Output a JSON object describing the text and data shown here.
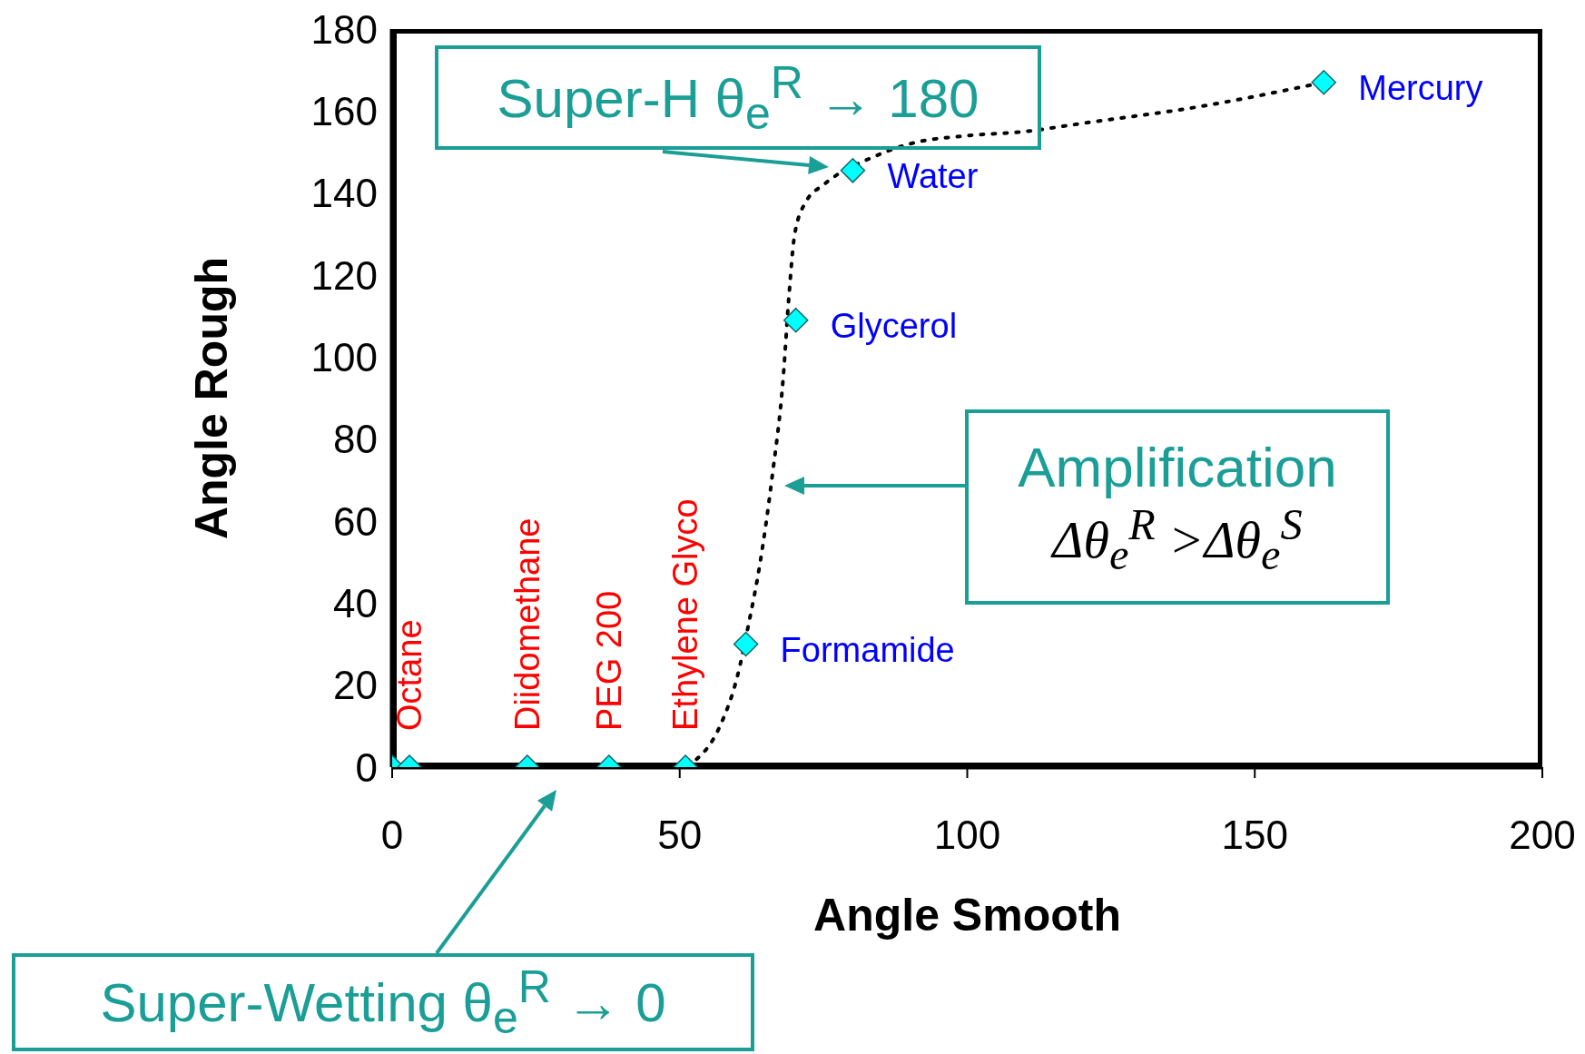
{
  "chart_data": {
    "type": "scatter",
    "xlabel": "Angle Smooth",
    "ylabel": "Angle Rough",
    "xlim": [
      0,
      200
    ],
    "xticks": [
      0,
      50,
      100,
      150,
      200
    ],
    "ylim": [
      0,
      180
    ],
    "yticks": [
      0,
      20,
      40,
      60,
      80,
      100,
      120,
      140,
      160,
      180
    ],
    "grid": false,
    "legend": false,
    "marker": "diamond",
    "series": [
      {
        "color": "#00ffff",
        "x": [
          0,
          3,
          23.5,
          37.7,
          51,
          61.5,
          70.2,
          80.1,
          162
        ],
        "values": [
          0,
          0,
          0,
          0,
          0,
          30,
          109,
          145.5,
          167
        ],
        "value_labels": [
          null,
          "Octane",
          "Diidomethane",
          "PEG 200",
          "Ethylene Glyco",
          "Formamide",
          "Glycerol",
          "Water",
          "Mercury"
        ]
      },
      {
        "type": "line",
        "color": "#000000",
        "line_style": "dotted",
        "marker": "none",
        "x": [
          41,
          50,
          53,
          57,
          60,
          62,
          64,
          66,
          68,
          69,
          70,
          72,
          75,
          84,
          90,
          100,
          110,
          120,
          140,
          162
        ],
        "values": [
          0,
          0,
          2,
          10,
          22,
          35,
          50,
          70,
          95,
          115,
          130,
          138,
          142,
          149,
          152,
          154,
          155,
          157,
          161,
          167
        ]
      }
    ],
    "annotations": [
      "Super-H  θ$_{e}$$^{R}$ → 180",
      "Amplification",
      "Δθ$_{e}$$^{R}$ >Δθ$_{e}$$^{S}$",
      "Super-Wetting  θ$_{e}$$^{R}$ → 0"
    ]
  }
}
